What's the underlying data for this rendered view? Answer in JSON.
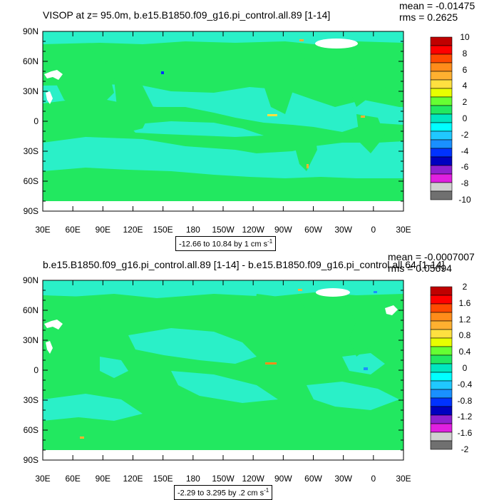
{
  "panels": [
    {
      "title": "VISOP at z=  95.0m, b.e15.B1850.f09_g16.pi_control.all.89 [1-14]",
      "stats": [
        "mean = -0.01475",
        "rms = 0.2625"
      ],
      "contour_info": "-12.66 to 10.84 by 1 cm s",
      "contour_sup": "-1",
      "colorbar_labels": [
        "10",
        "8",
        "6",
        "4",
        "2",
        "0",
        "-2",
        "-4",
        "-6",
        "-8",
        "-10"
      ]
    },
    {
      "title": "b.e15.B1850.f09_g16.pi_control.all.89 [1-14] - b.e15.B1850.f09_g16.pi_control.all.64 [1-14]",
      "stats": [
        "mean = -0.0007007",
        "rms = 0.05694"
      ],
      "contour_info": "-2.29 to 3.295 by .2 cm s",
      "contour_sup": "-1",
      "colorbar_labels": [
        "2",
        "1.6",
        "1.2",
        "0.8",
        "0.4",
        "0",
        "-0.4",
        "-0.8",
        "-1.2",
        "-1.6",
        "-2"
      ]
    }
  ],
  "lat_labels": [
    "90N",
    "60N",
    "30N",
    "0",
    "30S",
    "60S",
    "90S"
  ],
  "lon_labels": [
    "30E",
    "60E",
    "90E",
    "120E",
    "150E",
    "180",
    "150W",
    "120W",
    "90W",
    "60W",
    "30W",
    "0",
    "30E"
  ],
  "colors": {
    "palette": [
      "#c00000",
      "#ff0000",
      "#ff4a00",
      "#ff8c1a",
      "#ffb030",
      "#ffe040",
      "#e8ff00",
      "#66ff33",
      "#22e860",
      "#00e6c0",
      "#00ffff",
      "#20c8ff",
      "#1a90ff",
      "#0033ff",
      "#0000c0",
      "#9020d0",
      "#e020e0",
      "#d0d0d0",
      "#707070"
    ],
    "main_field": "#22e860",
    "secondary_field": "#2af0c8",
    "land_white": "#ffffff"
  }
}
